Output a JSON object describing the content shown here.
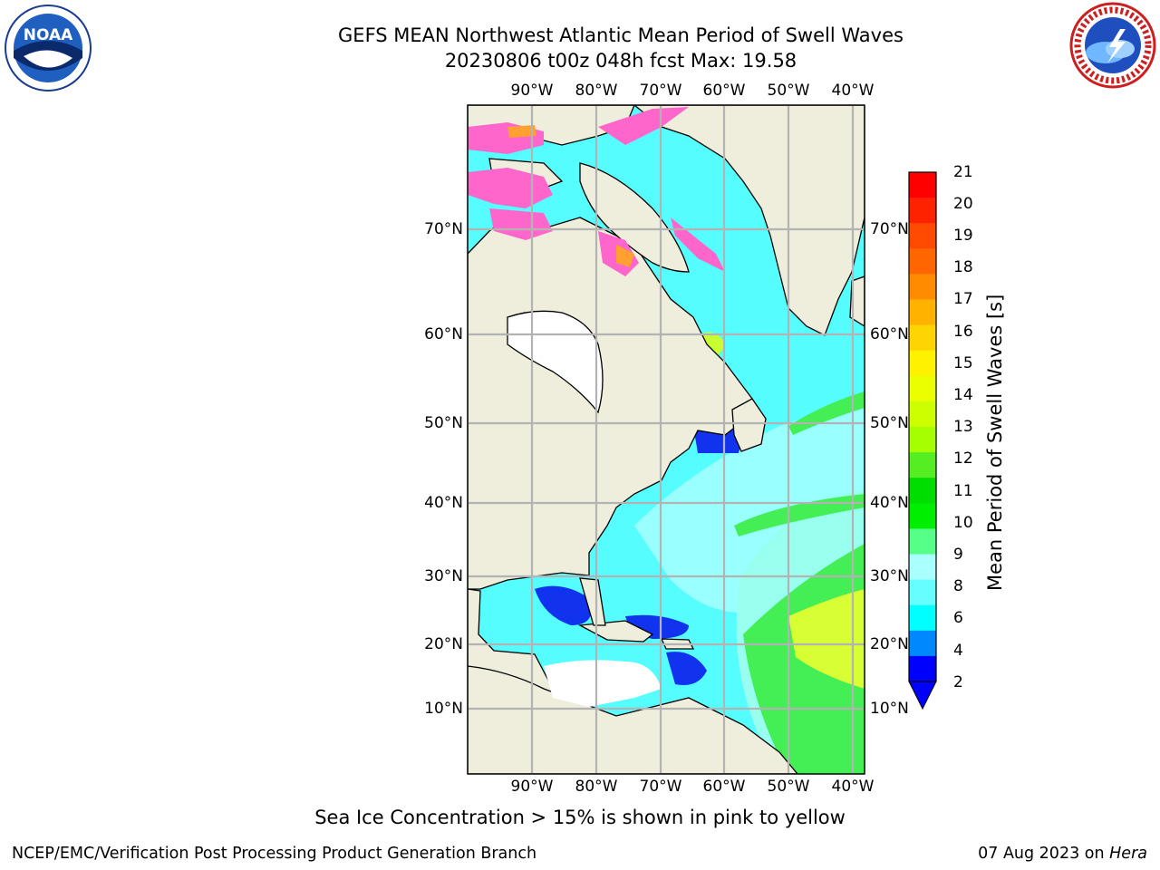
{
  "header": {
    "title": "GEFS MEAN Northwest Atlantic Mean Period of Swell Waves",
    "subtitle": "20230806 t00z 048h fcst   Max: 19.58"
  },
  "logos": {
    "left": {
      "text": "NOAA",
      "icon": "noaa-logo"
    },
    "right": {
      "icon": "nws-logo"
    }
  },
  "map": {
    "lon_labels": [
      "90°W",
      "80°W",
      "70°W",
      "60°W",
      "50°W",
      "40°W"
    ],
    "lat_labels": [
      "70°N",
      "60°N",
      "50°N",
      "40°N",
      "30°N",
      "20°N",
      "10°N"
    ],
    "colors": {
      "land": "#efeedd",
      "nodata": "#ffffff",
      "coast": "#000000",
      "grid": "#b3b3b3",
      "ice_pink": "#ff66cc",
      "ice_orange": "#ffa030"
    }
  },
  "colorbar": {
    "title": "Mean Period of Swell Waves [s]",
    "ticks": [
      "21",
      "20",
      "19",
      "18",
      "17",
      "16",
      "15",
      "14",
      "13",
      "12",
      "11",
      "10",
      "9",
      "8",
      "6",
      "4",
      "2"
    ],
    "colors": [
      "#ff0000",
      "#ff2200",
      "#ff4a00",
      "#ff6600",
      "#ff8c00",
      "#ffb300",
      "#ffd500",
      "#fff200",
      "#ebff00",
      "#ccff00",
      "#a6ff00",
      "#55ee22",
      "#00dd00",
      "#00ee00",
      "#55ff88",
      "#aaffff",
      "#66ffff",
      "#00ffff",
      "#0088ff",
      "#0000ff"
    ]
  },
  "notes": {
    "sea_ice": "Sea Ice Concentration > 15% is shown in pink to yellow"
  },
  "footer": {
    "left": "NCEP/EMC/Verification Post Processing Product Generation Branch",
    "date": "07 Aug 2023 on ",
    "host": "Hera"
  }
}
